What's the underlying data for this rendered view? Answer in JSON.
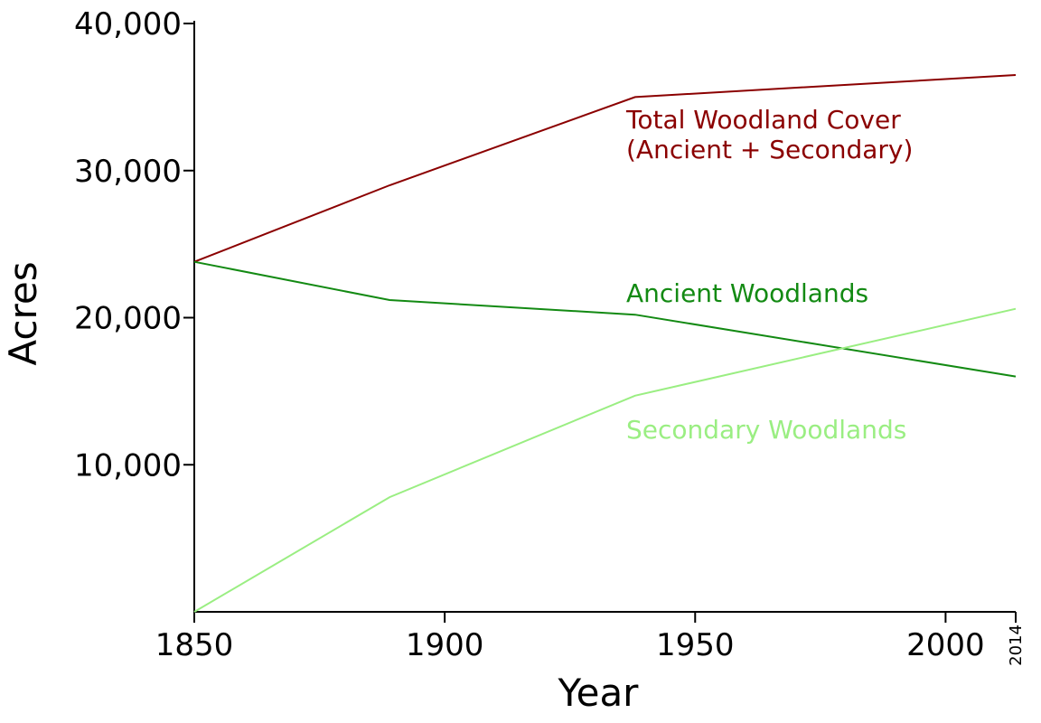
{
  "chart_data": {
    "type": "line",
    "xlabel": "Year",
    "ylabel": "Acres",
    "xlim": [
      1850,
      2014
    ],
    "ylim": [
      0,
      40000
    ],
    "x_ticks": [
      {
        "value": 1850,
        "label": "1850"
      },
      {
        "value": 1900,
        "label": "1900"
      },
      {
        "value": 1950,
        "label": "1950"
      },
      {
        "value": 2000,
        "label": "2000"
      },
      {
        "value": 2014,
        "label": "2014",
        "rotated": true
      }
    ],
    "y_ticks": [
      {
        "value": 10000,
        "label": "10,000"
      },
      {
        "value": 20000,
        "label": "20,000"
      },
      {
        "value": 30000,
        "label": "30,000"
      },
      {
        "value": 40000,
        "label": "40,000"
      }
    ],
    "grid": false,
    "legend": "inline labels",
    "series": [
      {
        "name": "Total Woodland Cover (Ancient + Secondary)",
        "label_lines": [
          "Total Woodland Cover",
          "(Ancient + Secondary)"
        ],
        "color": "#8b0000",
        "points": [
          [
            1850,
            23800
          ],
          [
            1889,
            29000
          ],
          [
            1938,
            35000
          ],
          [
            2014,
            36500
          ]
        ]
      },
      {
        "name": "Ancient Woodlands",
        "label_lines": [
          "Ancient Woodlands"
        ],
        "color": "#138a13",
        "points": [
          [
            1850,
            23800
          ],
          [
            1889,
            21200
          ],
          [
            1938,
            20200
          ],
          [
            2014,
            16000
          ]
        ]
      },
      {
        "name": "Secondary Woodlands",
        "label_lines": [
          "Secondary Woodlands"
        ],
        "color": "#9aee82",
        "points": [
          [
            1850,
            0
          ],
          [
            1889,
            7800
          ],
          [
            1938,
            14700
          ],
          [
            2014,
            20600
          ]
        ]
      }
    ]
  }
}
